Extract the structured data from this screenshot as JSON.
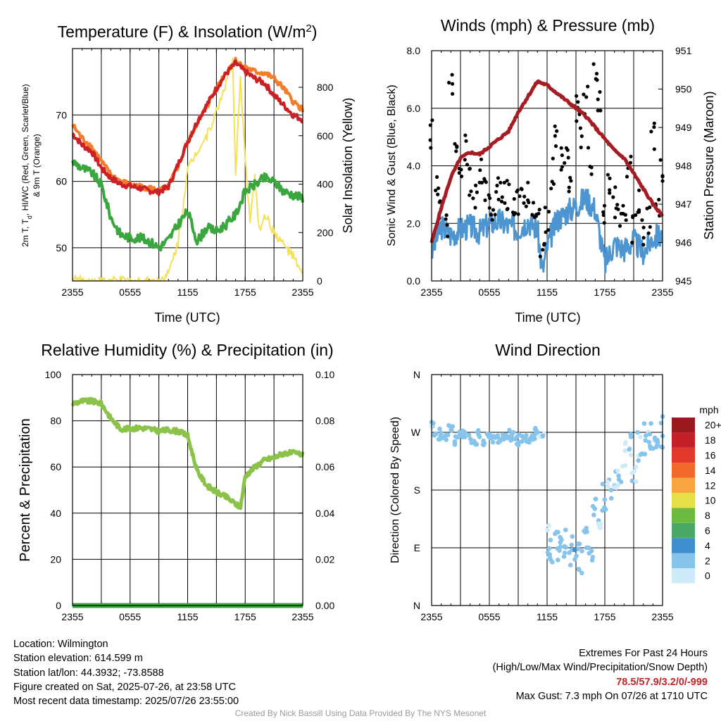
{
  "footer": {
    "location": "Location: Wilmington",
    "elevation": "Station elevation: 614.599 m",
    "latlon": "Station lat/lon: 44.3932; -73.8588",
    "created": "Figure created on Sat, 2025-07-26, at 23:58 UTC",
    "recent": "Most recent data timestamp: 2025/07/26 23:55:00",
    "extremes_title": "Extremes For Past 24 Hours",
    "extremes_subtitle": "(High/Low/Max Wind/Precipitation/Snow Depth)",
    "extremes_values": "78.5/57.9/3.2/0/-999",
    "max_gust": "Max Gust: 7.3 mph On 07/26 at 1710 UTC",
    "credit": "Created By Nick Bassill Using Data Provided By The NYS Mesonet"
  },
  "colors": {
    "red": "#cc2027",
    "orange": "#f47d2a",
    "green": "#3aa63e",
    "yellow": "#f5e05a",
    "blue": "#4c95d0",
    "black": "#000000",
    "maroon": "#a51d22",
    "rh": "#8bc34a",
    "precip": "#3aa63e"
  },
  "chart_data": [
    {
      "type": "line",
      "title_main": "Temperature (F) & Insolation (W/m",
      "title_sup": "2",
      "title_end": ")",
      "xlabel": "Time (UTC)",
      "ylabel_left_1": "2m T, T",
      "ylabel_left_sub": "d",
      "ylabel_left_2": ", HI/WC (Red, Green, Scarlet/Blue)",
      "ylabel_left_3": "& 9m T (Orange)",
      "ylabel_right": "Solar Insolation (Yellow)",
      "x_ticks": [
        "2355",
        "0555",
        "1155",
        "1755",
        "2355"
      ],
      "x_range_hours": [
        0,
        24
      ],
      "ylim_left": [
        45,
        80
      ],
      "y_ticks_left": [
        50,
        60,
        70
      ],
      "ylim_right": [
        0,
        960
      ],
      "y_ticks_right": [
        0,
        200,
        400,
        600,
        800
      ],
      "series": [
        {
          "name": "2m T",
          "color": "red",
          "x": [
            0,
            1,
            2,
            3,
            4,
            5,
            6,
            7,
            8,
            9,
            10,
            11,
            12,
            13,
            14,
            15,
            16,
            17,
            18,
            19,
            20,
            21,
            22,
            23,
            24
          ],
          "values": [
            67.2,
            65.5,
            64.5,
            62.0,
            60.5,
            59.6,
            59.3,
            59.0,
            58.6,
            58.4,
            59.2,
            62.5,
            66.0,
            69.0,
            71.5,
            74.0,
            76.2,
            77.8,
            76.5,
            75.5,
            74.8,
            73.0,
            71.5,
            70.0,
            69.3
          ]
        },
        {
          "name": "9m T",
          "color": "orange",
          "x": [
            0,
            1,
            2,
            3,
            4,
            5,
            6,
            7,
            8,
            9,
            10,
            11,
            12,
            13,
            14,
            15,
            16,
            17,
            18,
            19,
            20,
            21,
            22,
            23,
            24
          ],
          "values": [
            68.5,
            66.5,
            65.2,
            63.0,
            61.0,
            60.0,
            59.5,
            59.2,
            59.0,
            58.6,
            59.2,
            62.3,
            65.8,
            68.8,
            71.3,
            74.0,
            76.5,
            78.2,
            77.2,
            76.5,
            76.3,
            75.5,
            74.0,
            72.0,
            70.8
          ]
        },
        {
          "name": "Td",
          "color": "green",
          "x": [
            0,
            1,
            2,
            3,
            4,
            5,
            6,
            7,
            8,
            9,
            10,
            11,
            12,
            13,
            14,
            15,
            16,
            17,
            18,
            19,
            20,
            21,
            22,
            23,
            24
          ],
          "values": [
            63.0,
            62.0,
            61.3,
            59.5,
            54.5,
            52.0,
            51.5,
            51.5,
            51.0,
            50.0,
            51.2,
            53.5,
            55.5,
            51.0,
            53.0,
            52.5,
            53.5,
            55.0,
            58.5,
            59.5,
            60.5,
            60.0,
            58.5,
            58.0,
            57.5
          ]
        },
        {
          "name": "Solar Insolation",
          "color": "yellow",
          "axis": "right",
          "x": [
            0,
            1,
            4,
            8,
            9,
            10,
            11,
            12,
            13,
            14,
            15,
            16,
            16.7,
            17,
            17.5,
            18,
            18.5,
            19,
            19.5,
            20,
            21,
            22,
            23,
            24
          ],
          "values": [
            10,
            0,
            0,
            0,
            0,
            30,
            160,
            460,
            540,
            600,
            700,
            820,
            900,
            420,
            850,
            500,
            250,
            420,
            200,
            280,
            200,
            150,
            100,
            20
          ]
        }
      ]
    },
    {
      "type": "line",
      "title": "Winds (mph) & Pressure (mb)",
      "xlabel": "Time (UTC)",
      "ylabel_left": "Sonic Wind & Gust (Blue, Black)",
      "ylabel_right": "Station Pressure (Maroon)",
      "x_ticks": [
        "2355",
        "0555",
        "1155",
        "1755",
        "2355"
      ],
      "ylim_left": [
        0,
        8
      ],
      "y_ticks_left": [
        "0.0",
        "2.0",
        "4.0",
        "6.0",
        "8.0"
      ],
      "ylim_right": [
        945,
        951
      ],
      "y_ticks_right": [
        945,
        946,
        947,
        948,
        949,
        950,
        951
      ],
      "series": [
        {
          "name": "Sonic Wind",
          "color": "blue",
          "x": [
            0,
            1,
            2,
            3,
            4,
            5,
            6,
            7,
            8,
            9,
            10,
            11,
            11.5,
            12,
            13,
            14,
            15,
            16,
            17,
            18,
            19,
            20,
            21,
            22,
            23,
            24
          ],
          "values": [
            1.0,
            1.9,
            1.6,
            1.8,
            1.9,
            1.7,
            2.0,
            2.1,
            1.9,
            1.8,
            2.1,
            1.8,
            0.3,
            1.2,
            2.1,
            2.4,
            2.6,
            2.9,
            2.5,
            0.6,
            1.3,
            1.1,
            1.4,
            1.0,
            1.5,
            1.6
          ]
        },
        {
          "name": "Gust",
          "color": "black",
          "type": "scatter",
          "x": [
            0,
            0.5,
            1,
            1.5,
            2,
            2.5,
            3,
            3.5,
            4,
            4.5,
            5,
            5.5,
            6,
            6.5,
            7,
            7.5,
            8,
            8.5,
            9,
            9.5,
            10,
            10.5,
            11,
            11.5,
            12,
            12.5,
            13,
            13.5,
            14,
            14.5,
            15,
            15.5,
            16,
            16.5,
            17,
            17.5,
            18,
            18.5,
            19,
            19.5,
            20,
            20.5,
            21,
            21.5,
            22,
            22.5,
            23,
            23.5,
            24
          ],
          "values": [
            5.1,
            3.2,
            2.4,
            2.1,
            7.0,
            4.3,
            3.9,
            4.6,
            3.5,
            3.1,
            3.9,
            3.3,
            2.8,
            2.6,
            3.0,
            2.9,
            3.0,
            2.5,
            2.7,
            2.9,
            3.1,
            2.6,
            2.8,
            1.0,
            2.0,
            3.7,
            5.2,
            4.1,
            4.4,
            3.6,
            5.9,
            5.2,
            6.2,
            4.3,
            7.2,
            6.5,
            2.1,
            3.3,
            2.8,
            2.5,
            2.3,
            4.2,
            1.8,
            2.9,
            1.7,
            2.2,
            5.1,
            2.3,
            3.7
          ]
        },
        {
          "name": "Station Pressure",
          "color": "maroon",
          "axis": "right",
          "x": [
            0,
            1,
            2,
            3,
            4,
            5,
            6,
            7,
            8,
            9,
            10,
            11,
            12,
            13,
            14,
            15,
            16,
            17,
            18,
            19,
            20,
            21,
            22,
            23,
            24
          ],
          "values": [
            946.0,
            946.9,
            947.7,
            948.2,
            948.35,
            948.3,
            948.5,
            948.7,
            948.9,
            949.4,
            949.8,
            950.2,
            950.1,
            949.9,
            949.7,
            949.5,
            949.3,
            949.0,
            948.7,
            948.4,
            948.2,
            947.8,
            947.4,
            947.0,
            946.7
          ]
        }
      ]
    },
    {
      "type": "line",
      "title": "Relative Humidity (%) & Precipitation (in)",
      "ylabel_left": "Percent & Precipitation",
      "x_ticks": [
        "2355",
        "0555",
        "1155",
        "1755",
        "2355"
      ],
      "ylim_left": [
        0,
        100
      ],
      "y_ticks_left": [
        0,
        20,
        40,
        60,
        80,
        100
      ],
      "ylim_right": [
        0,
        0.1
      ],
      "y_ticks_right": [
        "0.00",
        "0.02",
        "0.04",
        "0.06",
        "0.08",
        "0.10"
      ],
      "series": [
        {
          "name": "RH",
          "color": "rh",
          "x": [
            0,
            1,
            2,
            3,
            4,
            5,
            6,
            7,
            8,
            9,
            10,
            11,
            12,
            13,
            14,
            15,
            16,
            17,
            17.5,
            18,
            19,
            20,
            21,
            22,
            23,
            24
          ],
          "values": [
            87.5,
            88.5,
            88.5,
            87.5,
            81,
            76.5,
            76.5,
            77,
            76.5,
            75.5,
            76,
            75.5,
            73.5,
            58,
            52,
            49,
            47,
            44,
            42.5,
            56,
            60,
            63,
            64,
            66,
            66,
            65.5
          ]
        },
        {
          "name": "Precipitation",
          "color": "precip",
          "axis": "right",
          "x": [
            0,
            24
          ],
          "values": [
            0,
            0
          ]
        }
      ]
    },
    {
      "type": "scatter",
      "title": "Wind Direction",
      "ylabel_left": "Direction (Colored By Speed)",
      "x_ticks": [
        "2355",
        "0555",
        "1155",
        "1755",
        "2355"
      ],
      "y_tick_labels": [
        "N",
        "E",
        "S",
        "W",
        "N"
      ],
      "ylim": [
        0,
        360
      ],
      "legend_title": "mph",
      "legend_levels": [
        "0",
        "2",
        "4",
        "6",
        "8",
        "10",
        "12",
        "14",
        "16",
        "18",
        "20+"
      ],
      "legend_colors": [
        "#cfeaf8",
        "#86c4ec",
        "#3f8fcf",
        "#4aa866",
        "#6cbb40",
        "#e7df48",
        "#f8a541",
        "#f26a2b",
        "#e0392b",
        "#c4202a",
        "#9a1b1f"
      ],
      "series": [
        {
          "name": "direction",
          "x": [
            0,
            0.5,
            1,
            1.5,
            2,
            2.5,
            3,
            3.5,
            4,
            4.5,
            5,
            5.5,
            6,
            6.5,
            7,
            7.5,
            8,
            8.5,
            9,
            9.5,
            10,
            10.5,
            11,
            11.5,
            12,
            12.5,
            13,
            13.5,
            14,
            14.5,
            15,
            15.5,
            16,
            16.5,
            17,
            17.5,
            18,
            18.5,
            19,
            19.5,
            20,
            20.5,
            21,
            21.5,
            22,
            22.5,
            23,
            23.5,
            24
          ],
          "values": [
            278,
            262,
            268,
            263,
            272,
            258,
            270,
            265,
            262,
            255,
            268,
            259,
            263,
            258,
            262,
            259,
            266,
            263,
            258,
            261,
            263,
            262,
            268,
            265,
            100,
            80,
            92,
            88,
            96,
            84,
            90,
            75,
            105,
            95,
            150,
            125,
            165,
            180,
            190,
            210,
            235,
            245,
            210,
            245,
            260,
            255,
            265,
            268,
            270
          ],
          "speeds": [
            1.5,
            1.8,
            1.5,
            2.2,
            2.0,
            1.8,
            1.6,
            2.1,
            1.9,
            2.0,
            2.2,
            1.7,
            1.8,
            2.0,
            1.6,
            2.0,
            2.1,
            1.9,
            1.6,
            1.8,
            2.0,
            1.7,
            2.3,
            1.2,
            0.8,
            1.8,
            2.1,
            1.9,
            2.4,
            2.6,
            2.8,
            2.3,
            2.5,
            2.7,
            2.1,
            0.6,
            1.4,
            1.0,
            0.9,
            1.1,
            0.5,
            1.3,
            0.8,
            1.0,
            1.5,
            1.2,
            1.4,
            1.3,
            1.6
          ]
        }
      ]
    }
  ]
}
